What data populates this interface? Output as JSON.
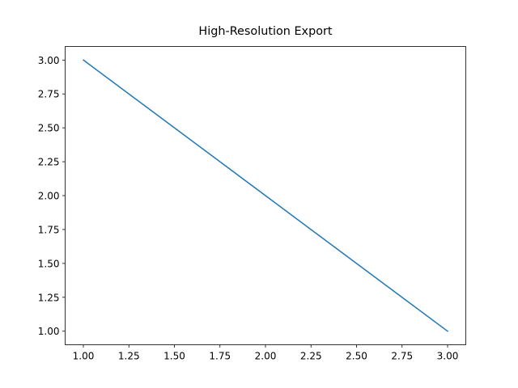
{
  "chart_data": {
    "type": "line",
    "title": "High-Resolution Export",
    "x": [
      1,
      2,
      3
    ],
    "series": [
      {
        "color": "#1f77b4",
        "values": [
          3,
          2,
          1
        ]
      }
    ],
    "xlim": [
      0.9,
      3.1
    ],
    "xticks": [
      {
        "value": 1,
        "label": "1.00"
      },
      {
        "value": 1.25,
        "label": "1.25"
      },
      {
        "value": 1.5,
        "label": "1.50"
      },
      {
        "value": 1.75,
        "label": "1.75"
      },
      {
        "value": 2,
        "label": "2.00"
      },
      {
        "value": 2.25,
        "label": "2.25"
      },
      {
        "value": 2.5,
        "label": "2.50"
      },
      {
        "value": 2.75,
        "label": "2.75"
      },
      {
        "value": 3,
        "label": "3.00"
      }
    ],
    "ylim": [
      0.9,
      3.1
    ],
    "yticks": [
      {
        "value": 1,
        "label": "1.00"
      },
      {
        "value": 1.25,
        "label": "1.25"
      },
      {
        "value": 1.5,
        "label": "1.50"
      },
      {
        "value": 1.75,
        "label": "1.75"
      },
      {
        "value": 2,
        "label": "2.00"
      },
      {
        "value": 2.25,
        "label": "2.25"
      },
      {
        "value": 2.5,
        "label": "2.50"
      },
      {
        "value": 2.75,
        "label": "2.75"
      },
      {
        "value": 3,
        "label": "3.00"
      }
    ],
    "grid": false
  }
}
